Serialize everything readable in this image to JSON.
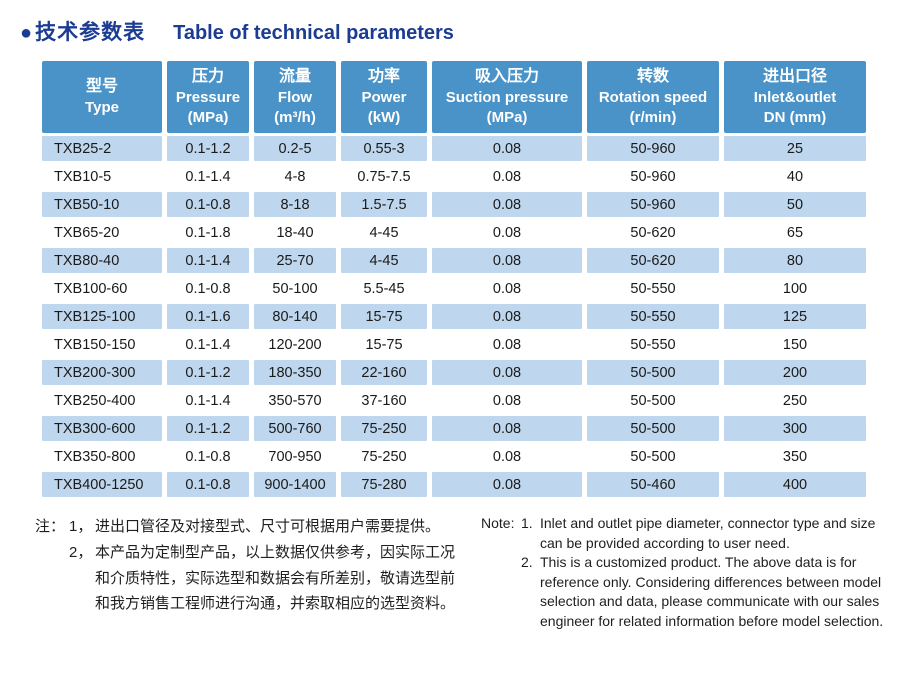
{
  "page": {
    "bullet": "●",
    "title_zh": "技术参数表",
    "title_en": "Table of technical parameters"
  },
  "colors": {
    "title_navy": "#1c3c94",
    "header_bg": "#4a93c8",
    "header_text": "#ffffff",
    "row_alt_bg": "#bed7ee",
    "body_text": "#1a1a1a"
  },
  "table": {
    "columns": [
      {
        "zh": "型号",
        "en": "Type",
        "unit": ""
      },
      {
        "zh": "压力",
        "en": "Pressure",
        "unit": "(MPa)"
      },
      {
        "zh": "流量",
        "en": "Flow",
        "unit": "(m³/h)"
      },
      {
        "zh": "功率",
        "en": "Power",
        "unit": "(kW)"
      },
      {
        "zh": "吸入压力",
        "en": "Suction pressure",
        "unit": "(MPa)"
      },
      {
        "zh": "转数",
        "en": "Rotation speed",
        "unit": "(r/min)"
      },
      {
        "zh": "进出口径",
        "en": "Inlet&outlet",
        "unit": "DN (mm)"
      }
    ],
    "rows": [
      [
        "TXB25-2",
        "0.1-1.2",
        "0.2-5",
        "0.55-3",
        "0.08",
        "50-960",
        "25"
      ],
      [
        "TXB10-5",
        "0.1-1.4",
        "4-8",
        "0.75-7.5",
        "0.08",
        "50-960",
        "40"
      ],
      [
        "TXB50-10",
        "0.1-0.8",
        "8-18",
        "1.5-7.5",
        "0.08",
        "50-960",
        "50"
      ],
      [
        "TXB65-20",
        "0.1-1.8",
        "18-40",
        "4-45",
        "0.08",
        "50-620",
        "65"
      ],
      [
        "TXB80-40",
        "0.1-1.4",
        "25-70",
        "4-45",
        "0.08",
        "50-620",
        "80"
      ],
      [
        "TXB100-60",
        "0.1-0.8",
        "50-100",
        "5.5-45",
        "0.08",
        "50-550",
        "100"
      ],
      [
        "TXB125-100",
        "0.1-1.6",
        "80-140",
        "15-75",
        "0.08",
        "50-550",
        "125"
      ],
      [
        "TXB150-150",
        "0.1-1.4",
        "120-200",
        "15-75",
        "0.08",
        "50-550",
        "150"
      ],
      [
        "TXB200-300",
        "0.1-1.2",
        "180-350",
        "22-160",
        "0.08",
        "50-500",
        "200"
      ],
      [
        "TXB250-400",
        "0.1-1.4",
        "350-570",
        "37-160",
        "0.08",
        "50-500",
        "250"
      ],
      [
        "TXB300-600",
        "0.1-1.2",
        "500-760",
        "75-250",
        "0.08",
        "50-500",
        "300"
      ],
      [
        "TXB350-800",
        "0.1-0.8",
        "700-950",
        "75-250",
        "0.08",
        "50-500",
        "350"
      ],
      [
        "TXB400-1250",
        "0.1-0.8",
        "900-1400",
        "75-280",
        "0.08",
        "50-460",
        "400"
      ]
    ]
  },
  "notes_zh": {
    "label": "注：",
    "items": [
      {
        "num": "1，",
        "text": "进出口管径及对接型式、尺寸可根据用户需要提供。"
      },
      {
        "num": "2，",
        "text": "本产品为定制型产品，以上数据仅供参考，因实际工况和介质特性，实际选型和数据会有所差别，敬请选型前和我方销售工程师进行沟通，并索取相应的选型资料。"
      }
    ]
  },
  "notes_en": {
    "label": "Note:",
    "items": [
      {
        "num": "1.",
        "text": "Inlet and outlet pipe diameter, connector type and size can be provided according to user need."
      },
      {
        "num": "2.",
        "text": "This is a customized product. The above data is for reference only. Considering differences between model selection and data, please communicate with our sales engineer for related information before model selection."
      }
    ]
  }
}
